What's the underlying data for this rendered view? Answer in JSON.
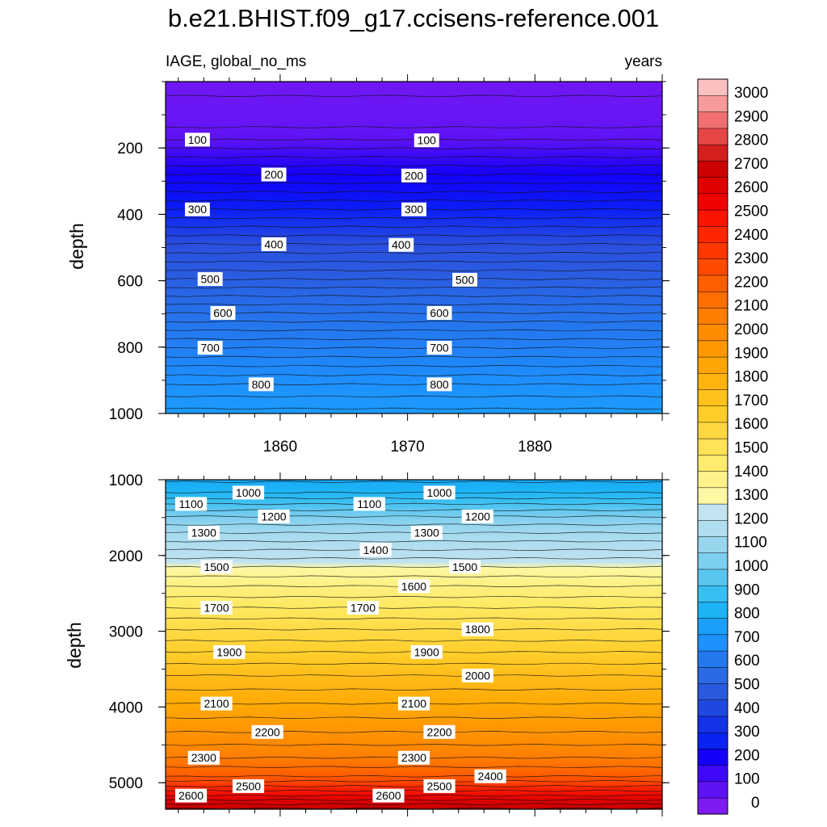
{
  "chart_data": {
    "type": "heatmap",
    "title": "b.e21.BHIST.f09_g17.ccisens-reference.001",
    "left_subtitle": "IAGE, global_no_ms",
    "right_subtitle": "years",
    "variable": "IAGE",
    "units": "years",
    "x_range": [
      1851,
      1890
    ],
    "x_ticks": [
      1860,
      1870,
      1880
    ],
    "colorbar_levels": [
      0,
      100,
      200,
      300,
      400,
      500,
      600,
      700,
      800,
      900,
      1000,
      1100,
      1200,
      1300,
      1400,
      1500,
      1600,
      1700,
      1800,
      1900,
      2000,
      2100,
      2200,
      2300,
      2400,
      2500,
      2600,
      2700,
      2800,
      2900,
      3000
    ],
    "colorbar_colors": [
      "#7d1bf2",
      "#5f12f4",
      "#3f08f7",
      "#1400fa",
      "#0a22f2",
      "#1432e8",
      "#2048e0",
      "#2a58de",
      "#2a6ae4",
      "#2478ee",
      "#1e90ff",
      "#1aa0fa",
      "#1cb4f4",
      "#38bff2",
      "#5ac6f0",
      "#7ccfee",
      "#98d6ee",
      "#b0deef",
      "#c2e3f1",
      "#fdf8a4",
      "#fff28a",
      "#ffeb6d",
      "#ffe255",
      "#ffd740",
      "#ffcd28",
      "#ffc11a",
      "#ffb30e",
      "#ffa505",
      "#ff9800",
      "#ff8c00",
      "#ff7e00",
      "#ff6e00",
      "#ff5e00",
      "#ff4a00",
      "#ff3800",
      "#ff2600",
      "#fb1400",
      "#f00000",
      "#e00000",
      "#cc0000",
      "#d51e1e",
      "#e64646",
      "#f07070",
      "#f69a9a",
      "#fbc0c0"
    ],
    "top_panel": {
      "ylabel": "depth",
      "y_range": [
        0,
        1000
      ],
      "y_ticks": [
        200,
        400,
        600,
        800,
        1000
      ],
      "contour_levels": [
        100,
        200,
        300,
        400,
        500,
        600,
        700,
        800
      ],
      "contour_labels": [
        {
          "text": "100",
          "x": 1853.5,
          "depth": 175
        },
        {
          "text": "100",
          "x": 1871.5,
          "depth": 177
        },
        {
          "text": "200",
          "x": 1859.5,
          "depth": 280
        },
        {
          "text": "200",
          "x": 1870.5,
          "depth": 283
        },
        {
          "text": "300",
          "x": 1853.5,
          "depth": 385
        },
        {
          "text": "300",
          "x": 1870.5,
          "depth": 385
        },
        {
          "text": "400",
          "x": 1859.5,
          "depth": 490
        },
        {
          "text": "400",
          "x": 1869.5,
          "depth": 492
        },
        {
          "text": "500",
          "x": 1854.5,
          "depth": 595
        },
        {
          "text": "500",
          "x": 1874.5,
          "depth": 597
        },
        {
          "text": "600",
          "x": 1855.5,
          "depth": 697
        },
        {
          "text": "600",
          "x": 1872.5,
          "depth": 697
        },
        {
          "text": "700",
          "x": 1854.5,
          "depth": 802
        },
        {
          "text": "700",
          "x": 1872.5,
          "depth": 802
        },
        {
          "text": "800",
          "x": 1858.5,
          "depth": 912
        },
        {
          "text": "800",
          "x": 1872.5,
          "depth": 912
        }
      ]
    },
    "bottom_panel": {
      "ylabel": "depth",
      "y_range": [
        1000,
        5350
      ],
      "y_ticks": [
        1000,
        2000,
        3000,
        4000,
        5000
      ],
      "contour_labels": [
        {
          "text": "1000",
          "x": 1857.5,
          "depth": 1170
        },
        {
          "text": "1000",
          "x": 1872.5,
          "depth": 1170
        },
        {
          "text": "1100",
          "x": 1853.0,
          "depth": 1320
        },
        {
          "text": "1100",
          "x": 1867.0,
          "depth": 1320
        },
        {
          "text": "1200",
          "x": 1859.5,
          "depth": 1485
        },
        {
          "text": "1200",
          "x": 1875.5,
          "depth": 1485
        },
        {
          "text": "1300",
          "x": 1854.0,
          "depth": 1700
        },
        {
          "text": "1300",
          "x": 1871.5,
          "depth": 1700
        },
        {
          "text": "1400",
          "x": 1867.5,
          "depth": 1925
        },
        {
          "text": "1500",
          "x": 1855.0,
          "depth": 2150
        },
        {
          "text": "1500",
          "x": 1874.5,
          "depth": 2150
        },
        {
          "text": "1600",
          "x": 1870.5,
          "depth": 2405
        },
        {
          "text": "1700",
          "x": 1855.0,
          "depth": 2690
        },
        {
          "text": "1700",
          "x": 1866.5,
          "depth": 2690
        },
        {
          "text": "1800",
          "x": 1875.5,
          "depth": 2975
        },
        {
          "text": "1900",
          "x": 1856.0,
          "depth": 3275
        },
        {
          "text": "1900",
          "x": 1871.5,
          "depth": 3275
        },
        {
          "text": "2000",
          "x": 1875.5,
          "depth": 3585
        },
        {
          "text": "2100",
          "x": 1855.0,
          "depth": 3955
        },
        {
          "text": "2100",
          "x": 1870.5,
          "depth": 3955
        },
        {
          "text": "2200",
          "x": 1859.0,
          "depth": 4330
        },
        {
          "text": "2200",
          "x": 1872.5,
          "depth": 4330
        },
        {
          "text": "2300",
          "x": 1854.0,
          "depth": 4670
        },
        {
          "text": "2300",
          "x": 1870.5,
          "depth": 4670
        },
        {
          "text": "2400",
          "x": 1876.5,
          "depth": 4915
        },
        {
          "text": "2500",
          "x": 1857.5,
          "depth": 5045
        },
        {
          "text": "2500",
          "x": 1872.5,
          "depth": 5045
        },
        {
          "text": "2600",
          "x": 1853.0,
          "depth": 5170
        },
        {
          "text": "2600",
          "x": 1868.5,
          "depth": 5170
        }
      ]
    }
  }
}
